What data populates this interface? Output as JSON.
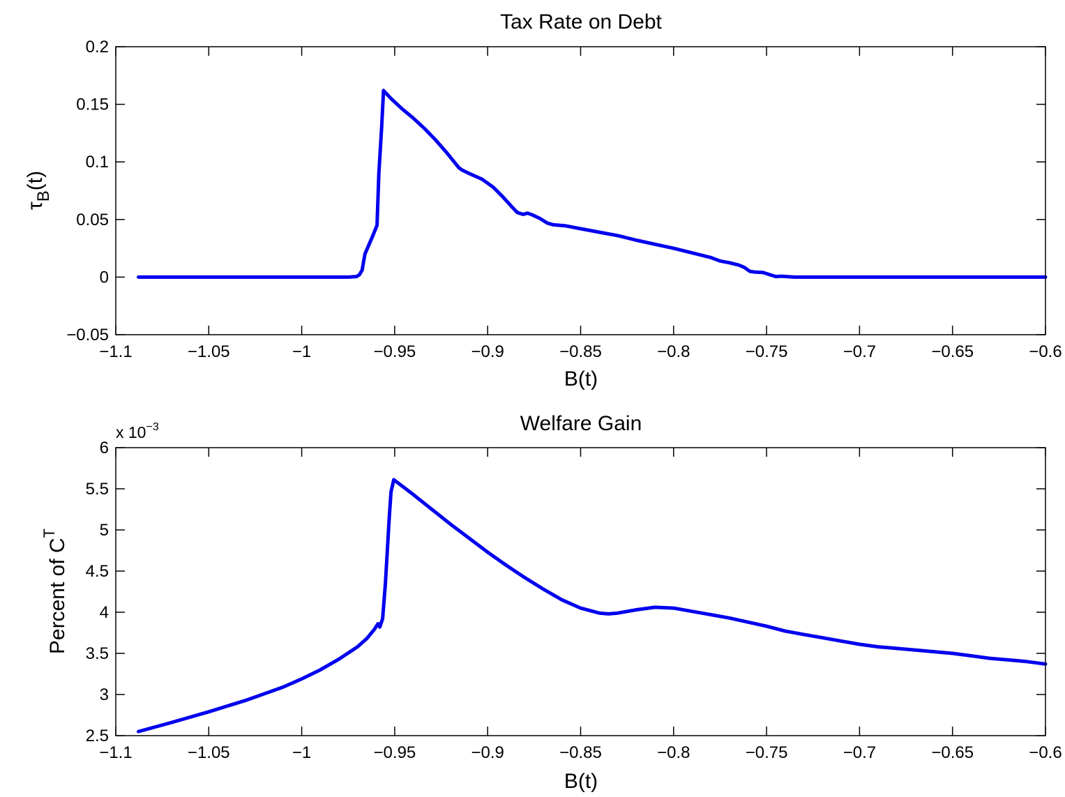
{
  "colors": {
    "line": "#0000ee",
    "axes": "#000000",
    "background": "#ffffff"
  },
  "chart_data": [
    {
      "type": "line",
      "title": "Tax Rate on Debt",
      "xlabel": "B(t)",
      "ylabel": {
        "main": "τ",
        "sub": "B",
        "suffix": "(t)"
      },
      "xlim": [
        -1.1,
        -0.6
      ],
      "ylim": [
        -0.05,
        0.2
      ],
      "xticks": [
        -1.1,
        -1.05,
        -1,
        -0.95,
        -0.9,
        -0.85,
        -0.8,
        -0.75,
        -0.7,
        -0.65,
        -0.6
      ],
      "xticklabels": [
        "−1.1",
        "−1.05",
        "−1",
        "−0.95",
        "−0.9",
        "−0.85",
        "−0.8",
        "−0.75",
        "−0.7",
        "−0.65",
        "−0.6"
      ],
      "yticks": [
        -0.05,
        0,
        0.05,
        0.1,
        0.15,
        0.2
      ],
      "yticklabels": [
        "−0.05",
        "0",
        "0.05",
        "0.1",
        "0.15",
        "0.2"
      ],
      "grid": false,
      "series": [
        {
          "x": [
            -1.0878,
            -1.05,
            -1.0,
            -0.975,
            -0.9705,
            -0.969,
            -0.9675,
            -0.966,
            -0.962,
            -0.9595,
            -0.9585,
            -0.957,
            -0.956,
            -0.952,
            -0.946,
            -0.94,
            -0.934,
            -0.928,
            -0.922,
            -0.918,
            -0.9155,
            -0.9138,
            -0.91,
            -0.903,
            -0.897,
            -0.892,
            -0.887,
            -0.884,
            -0.881,
            -0.8785,
            -0.876,
            -0.872,
            -0.868,
            -0.865,
            -0.858,
            -0.85,
            -0.84,
            -0.83,
            -0.82,
            -0.81,
            -0.8,
            -0.79,
            -0.78,
            -0.775,
            -0.77,
            -0.765,
            -0.762,
            -0.759,
            -0.756,
            -0.752,
            -0.748,
            -0.745,
            -0.742,
            -0.738,
            -0.735,
            -0.72,
            -0.7,
            -0.65,
            -0.6
          ],
          "y": [
            0,
            0,
            0,
            0,
            0.0005,
            0.002,
            0.006,
            0.02,
            0.035,
            0.045,
            0.09,
            0.13,
            0.162,
            0.155,
            0.146,
            0.138,
            0.129,
            0.119,
            0.108,
            0.1,
            0.095,
            0.093,
            0.09,
            0.085,
            0.078,
            0.07,
            0.061,
            0.056,
            0.0545,
            0.0555,
            0.054,
            0.051,
            0.047,
            0.0455,
            0.0445,
            0.042,
            0.039,
            0.036,
            0.032,
            0.0285,
            0.025,
            0.021,
            0.017,
            0.014,
            0.0125,
            0.0105,
            0.0085,
            0.005,
            0.0043,
            0.004,
            0.002,
            0.0005,
            0.0008,
            0.0003,
            0,
            0,
            0,
            0,
            0
          ]
        }
      ]
    },
    {
      "type": "line",
      "title": "Welfare Gain",
      "xlabel": "B(t)",
      "ylabel": {
        "main": "Percent of C",
        "sup": "T"
      },
      "scale_label": {
        "prefix": "x 10",
        "exponent": "−3"
      },
      "xlim": [
        -1.1,
        -0.6
      ],
      "ylim": [
        2.5,
        6
      ],
      "xticks": [
        -1.1,
        -1.05,
        -1,
        -0.95,
        -0.9,
        -0.85,
        -0.8,
        -0.75,
        -0.7,
        -0.65,
        -0.6
      ],
      "xticklabels": [
        "−1.1",
        "−1.05",
        "−1",
        "−0.95",
        "−0.9",
        "−0.85",
        "−0.8",
        "−0.75",
        "−0.7",
        "−0.65",
        "−0.6"
      ],
      "yticks": [
        2.5,
        3,
        3.5,
        4,
        4.5,
        5,
        5.5,
        6
      ],
      "yticklabels": [
        "2.5",
        "3",
        "3.5",
        "4",
        "4.5",
        "5",
        "5.5",
        "6"
      ],
      "grid": false,
      "series": [
        {
          "x": [
            -1.0878,
            -1.07,
            -1.05,
            -1.03,
            -1.01,
            -1.0,
            -0.99,
            -0.98,
            -0.97,
            -0.965,
            -0.961,
            -0.959,
            -0.958,
            -0.9565,
            -0.955,
            -0.953,
            -0.952,
            -0.9505,
            -0.94,
            -0.93,
            -0.92,
            -0.91,
            -0.9,
            -0.89,
            -0.88,
            -0.87,
            -0.86,
            -0.85,
            -0.84,
            -0.835,
            -0.83,
            -0.82,
            -0.81,
            -0.8,
            -0.79,
            -0.78,
            -0.77,
            -0.76,
            -0.75,
            -0.74,
            -0.73,
            -0.72,
            -0.71,
            -0.7,
            -0.69,
            -0.68,
            -0.67,
            -0.66,
            -0.65,
            -0.64,
            -0.63,
            -0.62,
            -0.61,
            -0.6
          ],
          "y": [
            2.55,
            2.66,
            2.79,
            2.93,
            3.09,
            3.19,
            3.3,
            3.43,
            3.58,
            3.68,
            3.79,
            3.86,
            3.82,
            3.92,
            4.35,
            5.12,
            5.46,
            5.61,
            5.43,
            5.25,
            5.07,
            4.9,
            4.73,
            4.57,
            4.42,
            4.28,
            4.15,
            4.05,
            3.99,
            3.98,
            3.99,
            4.03,
            4.06,
            4.05,
            4.01,
            3.97,
            3.93,
            3.88,
            3.83,
            3.77,
            3.73,
            3.69,
            3.65,
            3.61,
            3.58,
            3.56,
            3.54,
            3.52,
            3.5,
            3.47,
            3.44,
            3.42,
            3.4,
            3.37
          ]
        }
      ]
    }
  ]
}
